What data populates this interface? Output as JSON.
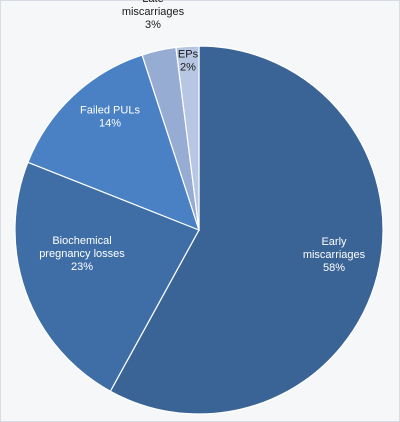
{
  "chart_data": {
    "type": "pie",
    "title": "",
    "slices": [
      {
        "label_lines": [
          "Early",
          "miscarriages"
        ],
        "pct_label": "58%",
        "value": 58,
        "color": "#3a6396",
        "label_color": "#ffffff"
      },
      {
        "label_lines": [
          "Biochemical",
          "pregnancy losses"
        ],
        "pct_label": "23%",
        "value": 23,
        "color": "#3f6ea7",
        "label_color": "#ffffff"
      },
      {
        "label_lines": [
          "Failed PULs"
        ],
        "pct_label": "14%",
        "value": 14,
        "color": "#4a81c4",
        "label_color": "#ffffff"
      },
      {
        "label_lines": [
          "Late",
          "miscarriages"
        ],
        "pct_label": "3%",
        "value": 3,
        "color": "#97acd2",
        "label_color": "#1a1a1a"
      },
      {
        "label_lines": [
          "EPs"
        ],
        "pct_label": "2%",
        "value": 2,
        "color": "#b7c6e2",
        "label_color": "#1a1a1a"
      }
    ],
    "start_angle_deg": 0,
    "direction": "clockwise",
    "legend": "none",
    "grid": false
  }
}
